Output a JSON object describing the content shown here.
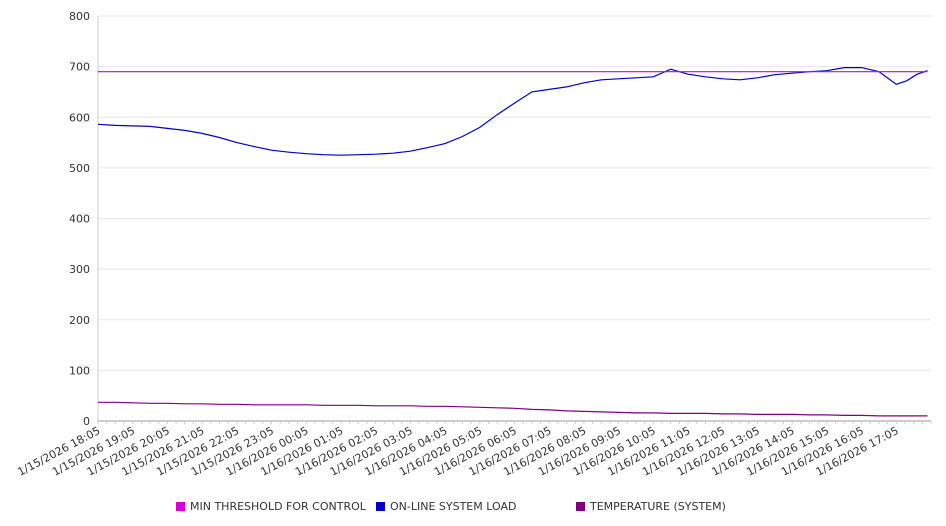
{
  "chart_data": {
    "type": "line",
    "title": "",
    "xlabel": "",
    "ylabel": "",
    "ylim": [
      0,
      800
    ],
    "yticks": [
      0,
      100,
      200,
      300,
      400,
      500,
      600,
      700,
      800
    ],
    "grid": true,
    "legend_position": "bottom",
    "xticks": [
      "1/15/2026 18:05",
      "1/15/2026 19:05",
      "1/15/2026 20:05",
      "1/15/2026 21:05",
      "1/15/2026 22:05",
      "1/15/2026 23:05",
      "1/16/2026 00:05",
      "1/16/2026 01:05",
      "1/16/2026 02:05",
      "1/16/2026 03:05",
      "1/16/2026 04:05",
      "1/16/2026 05:05",
      "1/16/2026 06:05",
      "1/16/2026 07:05",
      "1/16/2026 08:05",
      "1/16/2026 09:05",
      "1/16/2026 10:05",
      "1/16/2026 11:05",
      "1/16/2026 12:05",
      "1/16/2026 13:05",
      "1/16/2026 14:05",
      "1/16/2026 15:05",
      "1/16/2026 16:05",
      "1/16/2026 17:05"
    ],
    "x_hours": [
      0,
      0.5,
      1,
      1.5,
      2,
      2.5,
      3,
      3.5,
      4,
      4.5,
      5,
      5.5,
      6,
      6.5,
      7,
      7.5,
      8,
      8.5,
      9,
      9.5,
      10,
      10.5,
      11,
      11.5,
      12,
      12.5,
      13,
      13.5,
      14,
      14.5,
      15,
      15.5,
      16,
      16.5,
      17,
      17.5,
      18,
      18.5,
      19,
      19.5,
      20,
      20.5,
      21,
      21.5,
      22,
      22.5,
      23,
      23.3,
      23.6,
      23.9
    ],
    "series": [
      {
        "name": "MIN THRESHOLD FOR CONTROL",
        "color": "#d600d6",
        "values": [
          690,
          690,
          690,
          690,
          690,
          690,
          690,
          690,
          690,
          690,
          690,
          690,
          690,
          690,
          690,
          690,
          690,
          690,
          690,
          690,
          690,
          690,
          690,
          690,
          690,
          690,
          690,
          690,
          690,
          690,
          690,
          690,
          690,
          690,
          690,
          690,
          690,
          690,
          690,
          690,
          690,
          690,
          690,
          690,
          690,
          690,
          690,
          690,
          690,
          690
        ]
      },
      {
        "name": "ON-LINE SYSTEM LOAD",
        "color": "#0000cc",
        "values": [
          586,
          584,
          583,
          582,
          578,
          574,
          568,
          560,
          550,
          542,
          535,
          531,
          528,
          526,
          525,
          526,
          527,
          529,
          533,
          540,
          548,
          562,
          580,
          605,
          628,
          650,
          655,
          660,
          668,
          674,
          676,
          678,
          680,
          695,
          685,
          680,
          676,
          674,
          678,
          684,
          687,
          690,
          692,
          698,
          698,
          690,
          665,
          672,
          685,
          692
        ]
      },
      {
        "name": "TEMPERATURE (SYSTEM)",
        "color": "#800080",
        "values": [
          37,
          37,
          36,
          35,
          35,
          34,
          34,
          33,
          33,
          32,
          32,
          32,
          32,
          31,
          31,
          31,
          30,
          30,
          30,
          29,
          29,
          28,
          27,
          26,
          25,
          23,
          22,
          20,
          19,
          18,
          17,
          16,
          16,
          15,
          15,
          15,
          14,
          14,
          13,
          13,
          13,
          12,
          12,
          11,
          11,
          10,
          10,
          10,
          10,
          10
        ]
      }
    ]
  }
}
